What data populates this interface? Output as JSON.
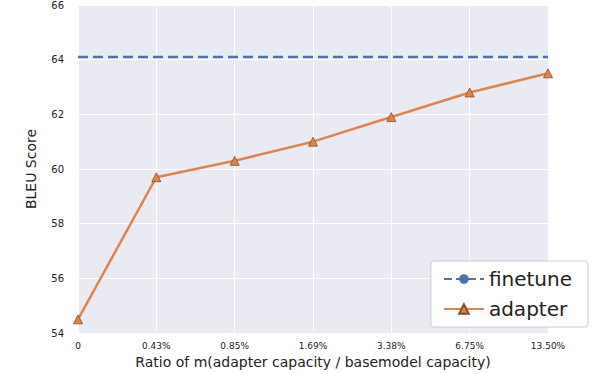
{
  "chart_data": {
    "type": "line",
    "x_label": "Ratio of m(adapter capacity / basemodel capacity)",
    "y_label": "BLEU Score",
    "categories": [
      "0",
      "0.43%",
      "0.85%",
      "1.69%",
      "3.38%",
      "6.75%",
      "13.50%"
    ],
    "series": [
      {
        "name": "finetune",
        "color": "#4c72b0",
        "line_style": "dashed",
        "marker": "none",
        "values": [
          64.1,
          64.1,
          64.1,
          64.1,
          64.1,
          64.1,
          64.1
        ]
      },
      {
        "name": "adapter",
        "color": "#dd8452",
        "line_style": "solid",
        "marker": "triangle",
        "values": [
          54.5,
          59.7,
          60.3,
          61.0,
          61.9,
          62.8,
          63.5
        ]
      }
    ],
    "ylim": [
      54,
      66
    ],
    "yticks": [
      54,
      56,
      58,
      60,
      62,
      64,
      66
    ],
    "grid": true,
    "legend": "lower right"
  }
}
